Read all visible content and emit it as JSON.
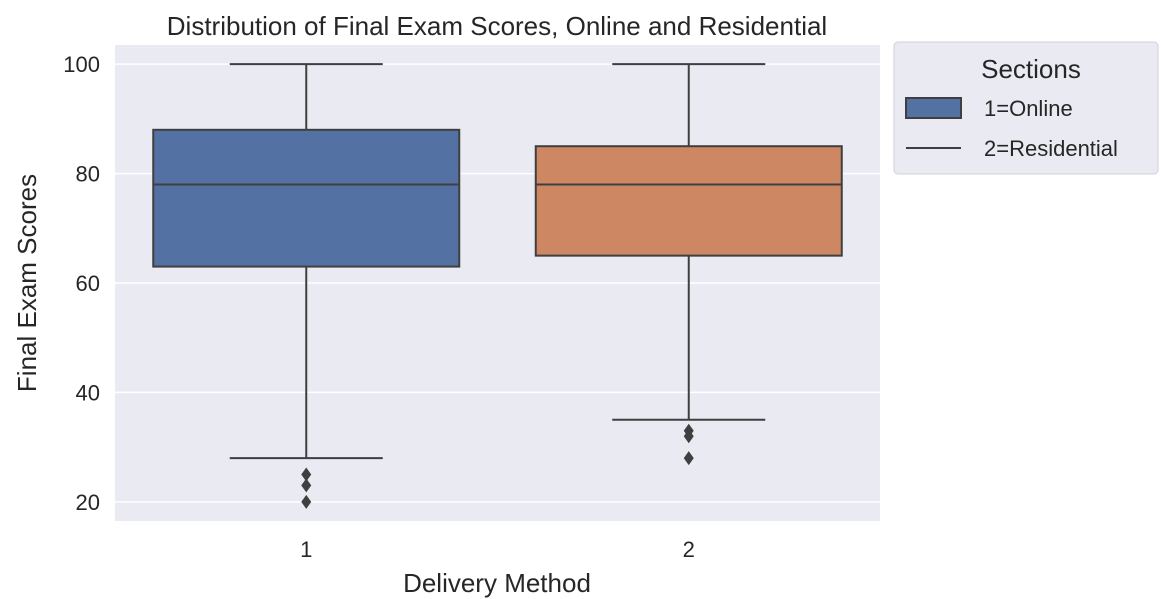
{
  "chart_data": {
    "type": "box",
    "title": "Distribution of Final Exam Scores, Online and Residential",
    "xlabel": "Delivery Method",
    "ylabel": "Final Exam Scores",
    "categories": [
      "1",
      "2"
    ],
    "ylim": [
      16.5,
      103.5
    ],
    "yticks": [
      20,
      40,
      60,
      80,
      100
    ],
    "grid": true,
    "legend": {
      "title": "Sections",
      "placement": "outside-right",
      "entries": [
        {
          "label": "1=Online",
          "marker": "patch",
          "color": "#5471a4"
        },
        {
          "label": "2=Residential",
          "marker": "line",
          "color": "#3f3f3f"
        }
      ]
    },
    "series": [
      {
        "category": "1",
        "color": "#5471a4",
        "whisker_low": 28,
        "q1": 63,
        "median": 78,
        "q3": 88,
        "whisker_high": 100,
        "outliers": [
          25,
          23,
          20
        ]
      },
      {
        "category": "2",
        "color": "#cd8762",
        "whisker_low": 35,
        "q1": 65,
        "median": 78,
        "q3": 85,
        "whisker_high": 100,
        "outliers": [
          33,
          32,
          28
        ]
      }
    ],
    "colors": {
      "plot_background": "#eaeaf2",
      "grid": "#ffffff",
      "box_edge": "#3f3f3f",
      "legend_background": "#eaeaf2"
    }
  }
}
